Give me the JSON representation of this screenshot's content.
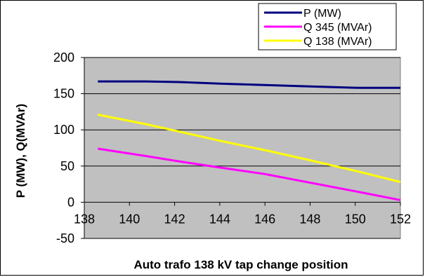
{
  "chart_data": {
    "type": "line",
    "title": "",
    "xlabel": "Auto trafo 138 kV tap change position",
    "ylabel": "P (MW), Q(MVAr)",
    "xlim": [
      138,
      152
    ],
    "ylim": [
      -50,
      200
    ],
    "x_ticks": [
      138,
      140,
      142,
      144,
      146,
      148,
      150,
      152
    ],
    "y_ticks": [
      -50,
      0,
      50,
      100,
      150,
      200
    ],
    "grid": true,
    "legend_position": "top-right",
    "plot_background": "#c0c0c0",
    "series": [
      {
        "name": "P (MW)",
        "color": "#000080",
        "x": [
          138.6,
          140.7,
          142.3,
          144.0,
          146.0,
          148.0,
          150.2,
          152.0
        ],
        "y": [
          167,
          167,
          166,
          164,
          162,
          160,
          158,
          158
        ]
      },
      {
        "name": "Q 345 (MVAr)",
        "color": "#ff00ff",
        "x": [
          138.6,
          140.7,
          142.3,
          144.0,
          146.0,
          148.0,
          150.2,
          152.0
        ],
        "y": [
          74,
          64,
          56,
          48,
          39,
          27,
          14,
          3
        ]
      },
      {
        "name": "Q 138 (MVAr)",
        "color": "#ffff00",
        "x": [
          138.6,
          140.7,
          142.3,
          144.0,
          146.0,
          148.0,
          150.2,
          152.0
        ],
        "y": [
          121,
          108,
          97,
          85,
          72,
          58,
          42,
          28
        ]
      }
    ]
  }
}
